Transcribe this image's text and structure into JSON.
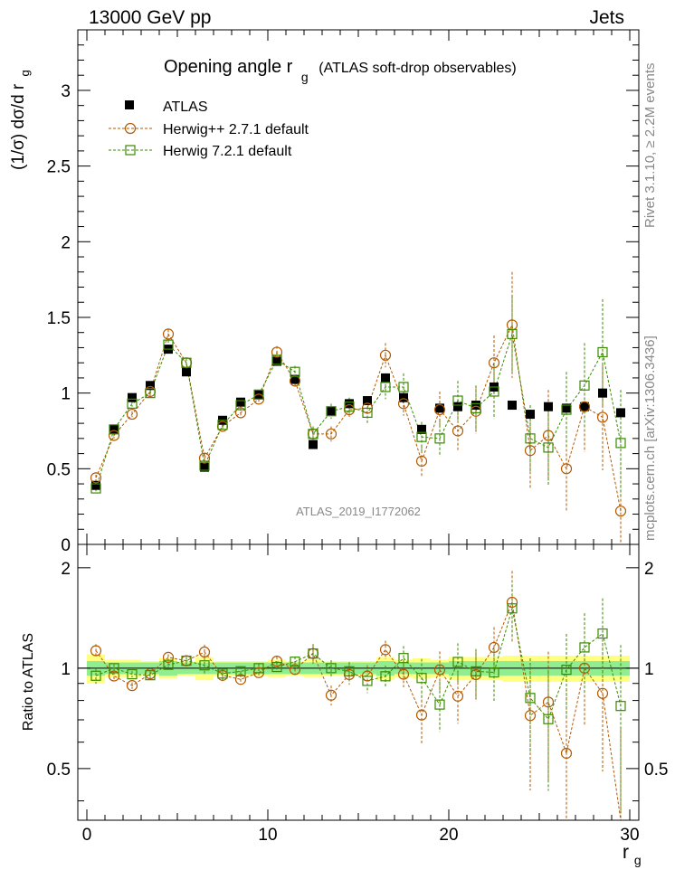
{
  "header": {
    "left": "13000 GeV pp",
    "right": "Jets"
  },
  "side_labels": {
    "rivet": "Rivet 3.1.10, ≥ 2.2M events",
    "mcplots": "mcplots.cern.ch [arXiv:1306.3436]"
  },
  "chart_data": {
    "type": "scatter",
    "title": "Opening angle r",
    "title_sub": "g",
    "title_suffix": "(ATLAS soft-drop observables)",
    "watermark": "ATLAS_2019_I1772062",
    "xlabel": "r",
    "xlabel_sub": "g",
    "ylabel": "(1/σ) dσ/d r",
    "ylabel_sub": "g",
    "ratio_ylabel": "Ratio to ATLAS",
    "xlim": [
      -0.5,
      30.5
    ],
    "ylim": [
      0,
      3.4
    ],
    "ratio_ylim": [
      0.35,
      2.35
    ],
    "x_ticks": [
      "0",
      "10",
      "20",
      "30"
    ],
    "y_ticks": [
      "0",
      "0.5",
      "1",
      "1.5",
      "2",
      "2.5",
      "3"
    ],
    "ratio_y_ticks": [
      "0.5",
      "1",
      "2"
    ],
    "x": [
      0.5,
      1.5,
      2.5,
      3.5,
      4.5,
      5.5,
      6.5,
      7.5,
      8.5,
      9.5,
      10.5,
      11.5,
      12.5,
      13.5,
      14.5,
      15.5,
      16.5,
      17.5,
      18.5,
      19.5,
      20.5,
      21.5,
      22.5,
      23.5,
      24.5,
      25.5,
      26.5,
      27.5,
      28.5,
      29.5
    ],
    "series": [
      {
        "name": "ATLAS",
        "color": "#000000",
        "marker": "filled-square",
        "values": [
          0.39,
          0.76,
          0.97,
          1.05,
          1.29,
          1.14,
          0.51,
          0.82,
          0.94,
          0.99,
          1.21,
          1.09,
          0.66,
          0.88,
          0.93,
          0.95,
          1.1,
          0.97,
          0.76,
          0.9,
          0.91,
          0.92,
          1.04,
          0.92,
          0.86,
          0.91,
          0.9,
          0.91,
          1.0,
          0.87
        ],
        "band_stat": [
          0.05,
          0.04,
          0.04,
          0.04,
          0.05,
          0.04,
          0.04,
          0.04,
          0.04,
          0.04,
          0.04,
          0.04,
          0.04,
          0.04,
          0.04,
          0.04,
          0.05,
          0.04,
          0.04,
          0.04,
          0.05,
          0.05,
          0.05,
          0.05,
          0.05,
          0.05,
          0.05,
          0.05,
          0.05,
          0.05
        ],
        "band_total": [
          0.1,
          0.06,
          0.06,
          0.05,
          0.07,
          0.05,
          0.08,
          0.05,
          0.05,
          0.05,
          0.06,
          0.05,
          0.06,
          0.05,
          0.05,
          0.05,
          0.08,
          0.06,
          0.07,
          0.06,
          0.08,
          0.08,
          0.08,
          0.09,
          0.09,
          0.09,
          0.09,
          0.09,
          0.09,
          0.09
        ]
      },
      {
        "name": "Herwig++ 2.7.1 default",
        "color": "#b35a00",
        "marker": "open-circle",
        "values": [
          0.44,
          0.72,
          0.86,
          1.01,
          1.39,
          1.2,
          0.57,
          0.78,
          0.87,
          0.96,
          1.27,
          1.08,
          0.73,
          0.73,
          0.89,
          0.9,
          1.25,
          0.93,
          0.55,
          0.89,
          0.75,
          0.88,
          1.2,
          1.45,
          0.62,
          0.72,
          0.5,
          0.91,
          0.84,
          0.22
        ],
        "errors": [
          0.02,
          0.02,
          0.02,
          0.02,
          0.03,
          0.03,
          0.03,
          0.03,
          0.03,
          0.03,
          0.04,
          0.04,
          0.04,
          0.05,
          0.06,
          0.07,
          0.08,
          0.08,
          0.1,
          0.12,
          0.13,
          0.15,
          0.18,
          0.35,
          0.25,
          0.3,
          0.28,
          0.3,
          0.35,
          0.35
        ]
      },
      {
        "name": "Herwig 7.2.1 default",
        "color": "#3a8a00",
        "marker": "open-square",
        "values": [
          0.37,
          0.76,
          0.93,
          1.0,
          1.32,
          1.2,
          0.52,
          0.79,
          0.92,
          0.99,
          1.22,
          1.14,
          0.73,
          0.88,
          0.91,
          0.87,
          1.04,
          1.04,
          0.71,
          0.7,
          0.95,
          0.9,
          1.01,
          1.39,
          0.7,
          0.64,
          0.89,
          1.05,
          1.27,
          0.67
        ],
        "errors": [
          0.02,
          0.02,
          0.02,
          0.02,
          0.03,
          0.03,
          0.03,
          0.03,
          0.03,
          0.03,
          0.04,
          0.04,
          0.05,
          0.05,
          0.06,
          0.07,
          0.08,
          0.09,
          0.1,
          0.12,
          0.13,
          0.15,
          0.18,
          0.25,
          0.22,
          0.25,
          0.25,
          0.28,
          0.35,
          0.35
        ]
      }
    ]
  }
}
